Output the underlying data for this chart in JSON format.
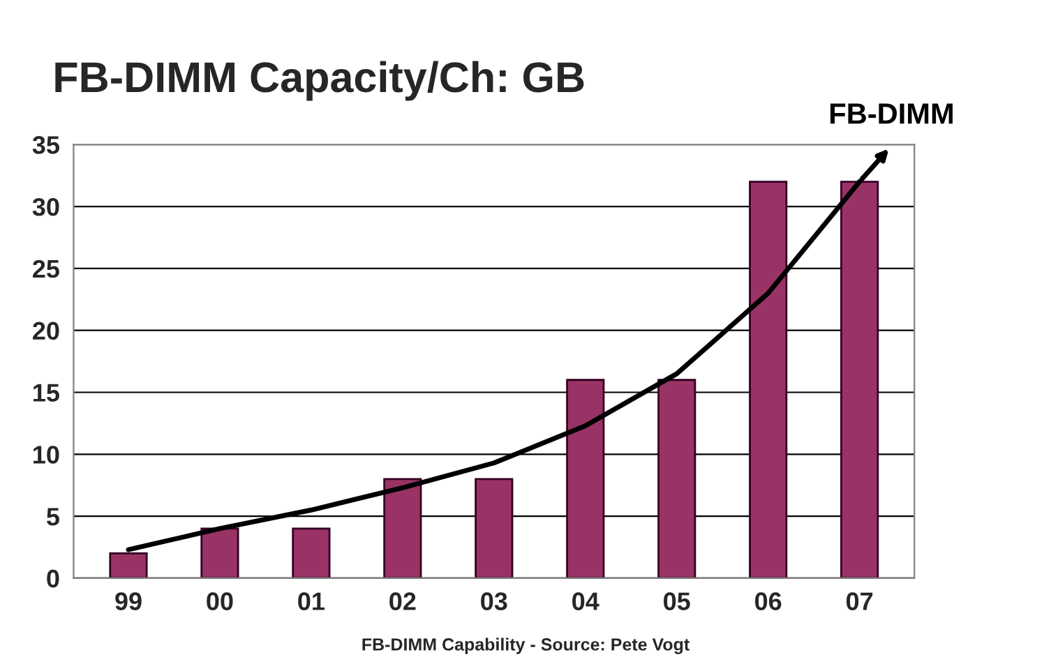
{
  "chart_data": {
    "type": "bar",
    "title": "FB-DIMM Capacity/Ch: GB",
    "categories": [
      "99",
      "00",
      "01",
      "02",
      "03",
      "04",
      "05",
      "06",
      "07"
    ],
    "series": [
      {
        "color": "#993366",
        "values": [
          2,
          4,
          4,
          8,
          8,
          16,
          16,
          32,
          32
        ]
      },
      {
        "type": "line",
        "name": "FB-DIMM",
        "color": "#000000",
        "x": [
          "99",
          "00",
          "01",
          "02",
          "03",
          "04",
          "05",
          "06",
          "07"
        ],
        "values": [
          2.3,
          4,
          5.5,
          7.3,
          9.3,
          12.3,
          16.5,
          23,
          32
        ]
      }
    ],
    "ylim": [
      0,
      35
    ],
    "yticks": [
      0,
      5,
      10,
      15,
      20,
      25,
      30,
      35
    ],
    "grid": "y",
    "legend": false,
    "annotations": [
      "FB-DIMM Capability - Source: Pete Vogt"
    ]
  }
}
